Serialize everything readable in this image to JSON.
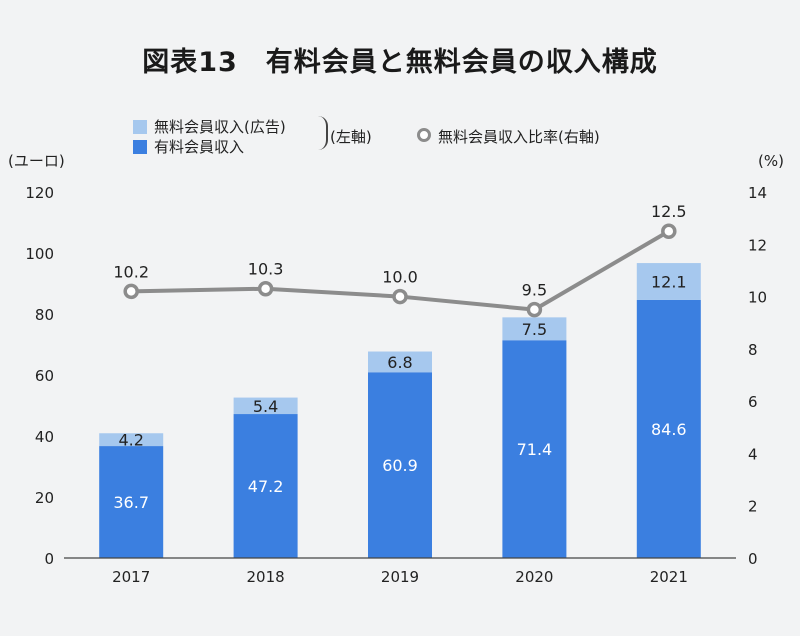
{
  "title": "図表13　有料会員と無料会員の収入構成",
  "legend": {
    "free_revenue": "無料会員収入(広告)",
    "paid_revenue": "有料会員収入",
    "left_axis_note": "(左軸)",
    "ratio": "無料会員収入比率(右軸)"
  },
  "colors": {
    "paid": "#3b7fe0",
    "free": "#a6c8ee",
    "line": "#8c8c8c",
    "marker_fill": "#ffffff"
  },
  "chart_data": {
    "type": "bar",
    "stacked": true,
    "categories": [
      "2017",
      "2018",
      "2019",
      "2020",
      "2021"
    ],
    "series": [
      {
        "name": "有料会員収入",
        "type": "bar",
        "axis": "left",
        "values": [
          36.7,
          47.2,
          60.9,
          71.4,
          84.6
        ]
      },
      {
        "name": "無料会員収入(広告)",
        "type": "bar",
        "axis": "left",
        "values": [
          4.2,
          5.4,
          6.8,
          7.5,
          12.1
        ]
      },
      {
        "name": "無料会員収入比率",
        "type": "line",
        "axis": "right",
        "values": [
          10.2,
          10.3,
          10.0,
          9.5,
          12.5
        ]
      }
    ],
    "y_left": {
      "label": "(ユーロ)",
      "ylim": [
        0,
        120
      ],
      "ticks": [
        0,
        20,
        40,
        60,
        80,
        100,
        120
      ]
    },
    "y_right": {
      "label": "(%)",
      "ylim": [
        0,
        14
      ],
      "ticks": [
        0,
        2,
        4,
        6,
        8,
        10,
        12,
        14
      ]
    },
    "grid": false,
    "legend_position": "top"
  }
}
